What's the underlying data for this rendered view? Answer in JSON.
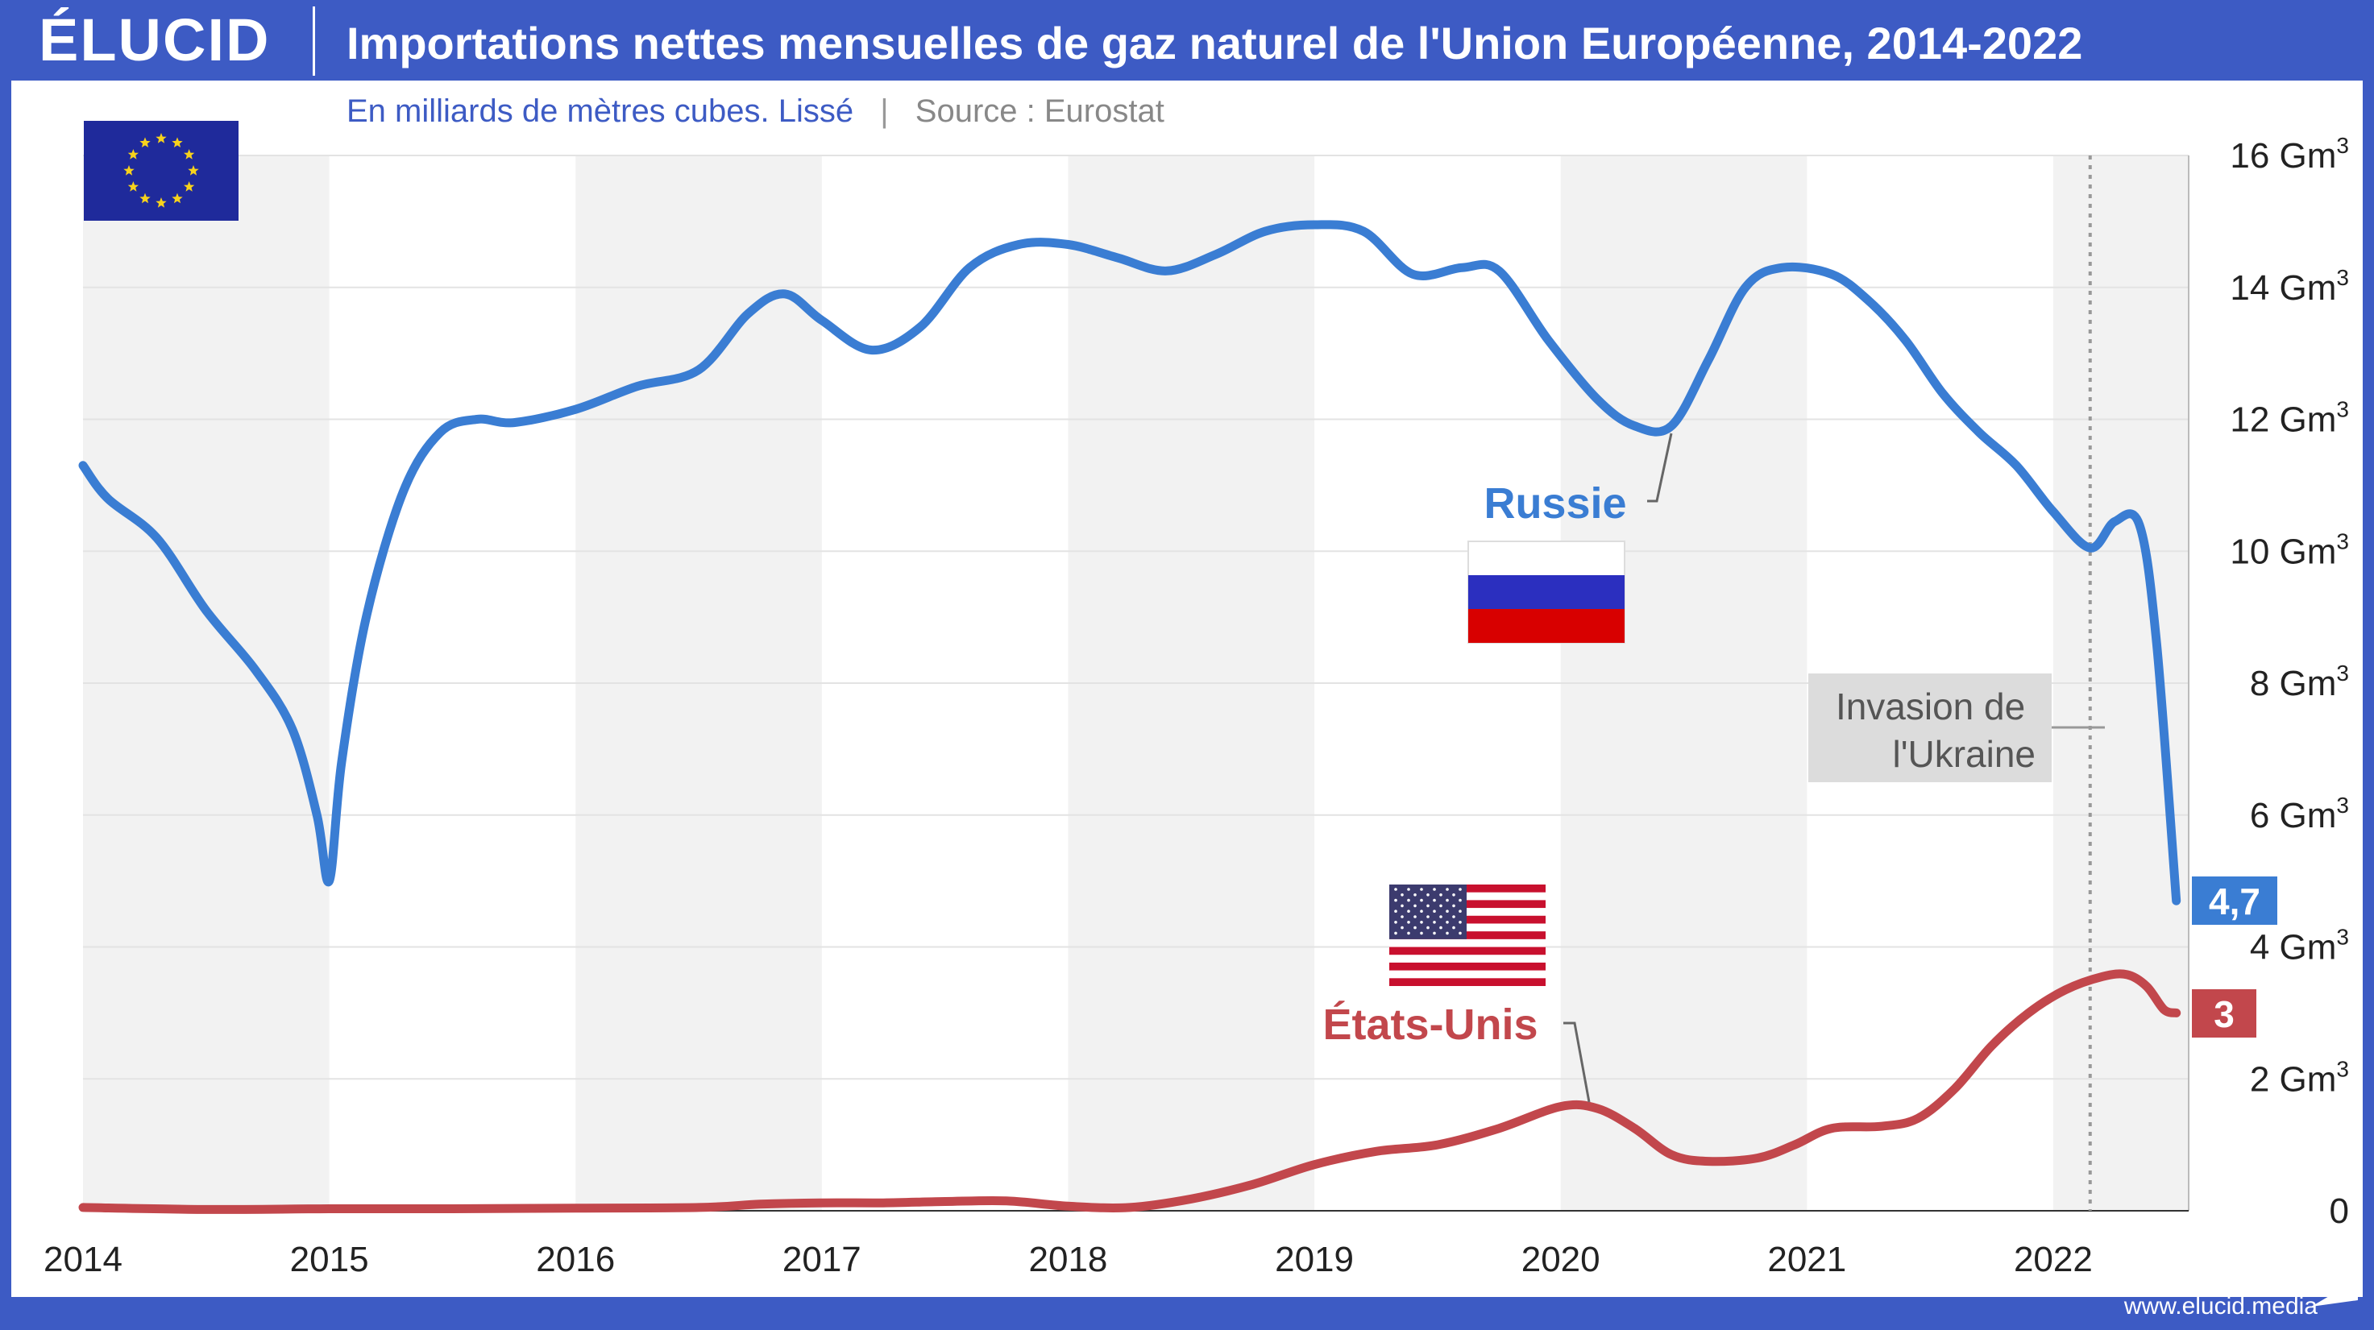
{
  "header": {
    "logo": "ÉLUCID",
    "title": "Importations nettes mensuelles de gaz naturel de l'Union Européenne, 2014-2022"
  },
  "subtitle": {
    "main": "En milliards de mètres cubes. Lissé",
    "separator": "|",
    "source": "Source : Eurostat"
  },
  "footer": {
    "url": "www.elucid.media"
  },
  "colors": {
    "russia": "#3a7dd3",
    "usa": "#c2474c",
    "brand": "#3d5bc4",
    "band": "#f2f2f2"
  },
  "chart_data": {
    "type": "line",
    "title": "Importations nettes mensuelles de gaz naturel de l'Union Européenne, 2014-2022",
    "subtitle": "En milliards de mètres cubes. Lissé",
    "xlabel": "",
    "ylabel": "",
    "x_ticks": [
      "2014",
      "2015",
      "2016",
      "2017",
      "2018",
      "2019",
      "2020",
      "2021",
      "2022"
    ],
    "y_ticks": [
      "0",
      "2 Gm3",
      "4 Gm3",
      "6 Gm3",
      "8 Gm3",
      "10 Gm3",
      "12 Gm3",
      "14 Gm3",
      "16 Gm3"
    ],
    "xlim": [
      2014,
      2022.55
    ],
    "ylim": [
      0,
      16
    ],
    "grid": true,
    "series": [
      {
        "name": "Russie",
        "end_label": "4,7",
        "points": [
          [
            2014.0,
            11.3
          ],
          [
            2014.1,
            10.8
          ],
          [
            2014.3,
            10.2
          ],
          [
            2014.5,
            9.1
          ],
          [
            2014.7,
            8.2
          ],
          [
            2014.85,
            7.3
          ],
          [
            2014.95,
            6.0
          ],
          [
            2015.0,
            5.0
          ],
          [
            2015.05,
            6.8
          ],
          [
            2015.15,
            9.0
          ],
          [
            2015.3,
            10.9
          ],
          [
            2015.45,
            11.8
          ],
          [
            2015.6,
            12.0
          ],
          [
            2015.75,
            11.95
          ],
          [
            2016.0,
            12.15
          ],
          [
            2016.25,
            12.5
          ],
          [
            2016.5,
            12.75
          ],
          [
            2016.7,
            13.6
          ],
          [
            2016.85,
            13.9
          ],
          [
            2017.0,
            13.5
          ],
          [
            2017.2,
            13.05
          ],
          [
            2017.4,
            13.4
          ],
          [
            2017.6,
            14.3
          ],
          [
            2017.8,
            14.65
          ],
          [
            2018.0,
            14.65
          ],
          [
            2018.2,
            14.45
          ],
          [
            2018.4,
            14.25
          ],
          [
            2018.6,
            14.5
          ],
          [
            2018.8,
            14.85
          ],
          [
            2019.0,
            14.95
          ],
          [
            2019.2,
            14.85
          ],
          [
            2019.4,
            14.2
          ],
          [
            2019.6,
            14.3
          ],
          [
            2019.75,
            14.25
          ],
          [
            2019.95,
            13.2
          ],
          [
            2020.15,
            12.3
          ],
          [
            2020.3,
            11.9
          ],
          [
            2020.45,
            11.9
          ],
          [
            2020.6,
            12.9
          ],
          [
            2020.75,
            14.0
          ],
          [
            2020.9,
            14.3
          ],
          [
            2021.1,
            14.2
          ],
          [
            2021.25,
            13.8
          ],
          [
            2021.4,
            13.2
          ],
          [
            2021.55,
            12.4
          ],
          [
            2021.7,
            11.8
          ],
          [
            2021.85,
            11.3
          ],
          [
            2022.0,
            10.6
          ],
          [
            2022.15,
            10.05
          ],
          [
            2022.25,
            10.45
          ],
          [
            2022.35,
            10.4
          ],
          [
            2022.42,
            8.6
          ],
          [
            2022.5,
            4.7
          ]
        ]
      },
      {
        "name": "États-Unis",
        "end_label": "3",
        "points": [
          [
            2014.0,
            0.05
          ],
          [
            2014.5,
            0.02
          ],
          [
            2015.0,
            0.03
          ],
          [
            2015.5,
            0.03
          ],
          [
            2016.0,
            0.04
          ],
          [
            2016.5,
            0.05
          ],
          [
            2016.75,
            0.1
          ],
          [
            2017.0,
            0.12
          ],
          [
            2017.25,
            0.12
          ],
          [
            2017.5,
            0.14
          ],
          [
            2017.75,
            0.15
          ],
          [
            2018.0,
            0.07
          ],
          [
            2018.25,
            0.05
          ],
          [
            2018.5,
            0.18
          ],
          [
            2018.75,
            0.4
          ],
          [
            2019.0,
            0.7
          ],
          [
            2019.25,
            0.9
          ],
          [
            2019.5,
            1.0
          ],
          [
            2019.75,
            1.25
          ],
          [
            2020.0,
            1.58
          ],
          [
            2020.15,
            1.55
          ],
          [
            2020.3,
            1.25
          ],
          [
            2020.45,
            0.85
          ],
          [
            2020.6,
            0.75
          ],
          [
            2020.8,
            0.8
          ],
          [
            2020.95,
            1.0
          ],
          [
            2021.1,
            1.25
          ],
          [
            2021.3,
            1.28
          ],
          [
            2021.45,
            1.4
          ],
          [
            2021.6,
            1.85
          ],
          [
            2021.75,
            2.5
          ],
          [
            2021.9,
            3.0
          ],
          [
            2022.05,
            3.35
          ],
          [
            2022.2,
            3.55
          ],
          [
            2022.3,
            3.58
          ],
          [
            2022.38,
            3.4
          ],
          [
            2022.45,
            3.05
          ],
          [
            2022.5,
            3.0
          ]
        ]
      }
    ],
    "annotations": [
      {
        "text_lines": [
          "Invasion de",
          "l'Ukraine"
        ],
        "x": 2022.15
      }
    ]
  }
}
